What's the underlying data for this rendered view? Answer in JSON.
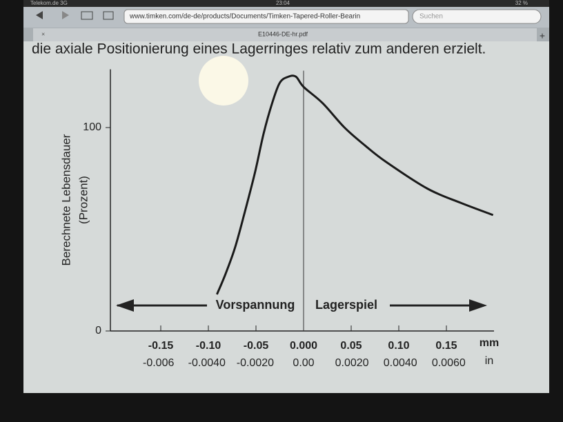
{
  "status_bar": {
    "carrier": "Telekom.de 3G",
    "time": "23:04",
    "battery": "32 %"
  },
  "toolbar": {
    "url": "www.timken.com/de-de/products/Documents/Timken-Tapered-Roller-Bearin",
    "search": "Suchen"
  },
  "tab": {
    "title": "E10446-DE-hr.pdf"
  },
  "document": {
    "text_line": "die axiale Positionierung eines Lagerringes relativ zum anderen erzielt."
  },
  "chart_data": {
    "type": "line",
    "ylabel": "Berechnete Lebensdauer",
    "ylabel_unit": "(Prozent)",
    "x": [
      -0.091,
      -0.082,
      -0.072,
      -0.062,
      -0.051,
      -0.042,
      -0.033,
      -0.025,
      -0.016,
      -0.008,
      0,
      0.02,
      0.043,
      0.065,
      0.087,
      0.13,
      0.165,
      0.199
    ],
    "values": [
      18,
      28,
      41,
      58,
      78,
      97,
      112,
      122,
      125,
      125,
      120,
      112,
      100,
      91,
      83,
      70,
      63,
      57
    ],
    "color": "#1a1a1a",
    "xlim": [
      -0.2,
      0.2
    ],
    "ylim": [
      0,
      130
    ],
    "xticks": [
      -0.15,
      {
        "value": -0.1,
        "label": "-0.10"
      },
      -0.05,
      {
        "value": 0,
        "label": "0.000"
      },
      0.05,
      {
        "value": 0.1,
        "label": "0.10"
      },
      0.15
    ],
    "yticks": [
      0,
      100
    ],
    "xunit": "mm",
    "x2lim": [
      -0.007874,
      0.007874
    ],
    "x2ticks": [
      -0.006,
      {
        "value": -0.004,
        "label": "-0.0040"
      },
      {
        "value": -0.002,
        "label": "-0.0020"
      },
      {
        "value": 0,
        "label": "0.00"
      },
      {
        "value": 0.002,
        "label": "0.0020"
      },
      {
        "value": 0.004,
        "label": "0.0040"
      },
      {
        "value": 0.006,
        "label": "0.0060"
      }
    ],
    "x2unit": "in",
    "left_annotation": "Vorspannung",
    "right_annotation": "Lagerspiel"
  }
}
